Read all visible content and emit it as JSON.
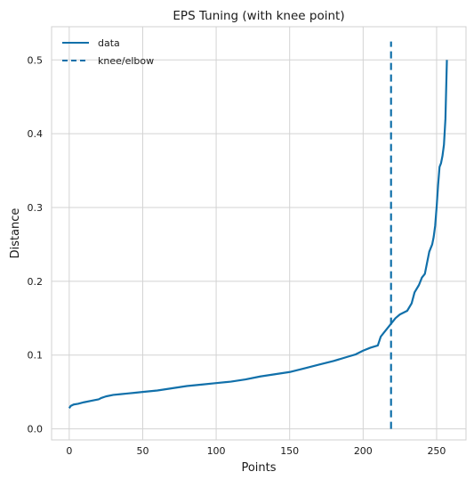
{
  "chart_data": {
    "type": "line",
    "title": "EPS Tuning (with knee point)",
    "xlabel": "Points",
    "ylabel": "Distance",
    "xlim": [
      -12,
      270
    ],
    "ylim": [
      -0.015,
      0.545
    ],
    "xticks": [
      0,
      50,
      100,
      150,
      200,
      250
    ],
    "yticks": [
      0.0,
      0.1,
      0.2,
      0.3,
      0.4,
      0.5
    ],
    "xtick_labels": [
      "0",
      "50",
      "100",
      "150",
      "200",
      "250"
    ],
    "ytick_labels": [
      "0.0",
      "0.1",
      "0.2",
      "0.3",
      "0.4",
      "0.5"
    ],
    "grid": true,
    "legend_position": "top-left",
    "series": [
      {
        "name": "data",
        "style": "solid",
        "color": "#1170aa",
        "x": [
          0,
          1,
          3,
          6,
          10,
          15,
          20,
          22,
          25,
          30,
          35,
          40,
          45,
          50,
          60,
          70,
          80,
          90,
          100,
          110,
          120,
          130,
          140,
          150,
          160,
          170,
          180,
          190,
          195,
          200,
          205,
          210,
          212,
          214,
          216,
          218,
          220,
          222,
          225,
          230,
          233,
          235,
          238,
          240,
          242,
          243,
          245,
          247,
          248,
          249,
          250,
          251,
          252,
          253,
          254,
          255,
          256,
          257
        ],
        "y": [
          0.028,
          0.031,
          0.033,
          0.034,
          0.036,
          0.038,
          0.04,
          0.042,
          0.044,
          0.046,
          0.047,
          0.048,
          0.049,
          0.05,
          0.052,
          0.055,
          0.058,
          0.06,
          0.062,
          0.064,
          0.067,
          0.071,
          0.074,
          0.077,
          0.082,
          0.087,
          0.092,
          0.098,
          0.101,
          0.106,
          0.11,
          0.113,
          0.125,
          0.13,
          0.135,
          0.14,
          0.145,
          0.15,
          0.155,
          0.16,
          0.17,
          0.185,
          0.195,
          0.205,
          0.21,
          0.22,
          0.24,
          0.25,
          0.26,
          0.275,
          0.3,
          0.33,
          0.355,
          0.36,
          0.37,
          0.385,
          0.42,
          0.5
        ]
      },
      {
        "name": "knee/elbow",
        "style": "dashed",
        "color": "#1170aa",
        "x": [
          219,
          219
        ],
        "y": [
          0.0,
          0.525
        ]
      }
    ]
  }
}
